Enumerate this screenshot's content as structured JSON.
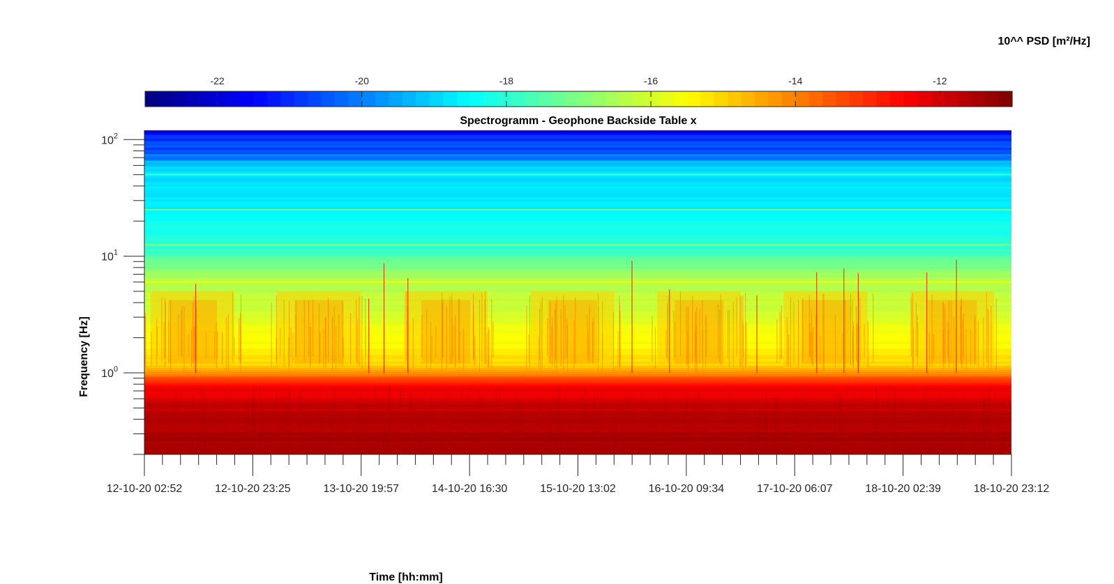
{
  "chart_data": {
    "type": "heatmap",
    "title": "Spectrogramm - Geophone Backside Table x",
    "xlabel": "Time [hh:mm]",
    "ylabel": "Frequency [Hz]",
    "colorbar_label": "10^^ PSD [m²/Hz]",
    "colormap": "jet",
    "color_range": [
      -23.0,
      -11.0
    ],
    "colorbar_ticks": [
      -22,
      -20,
      -18,
      -16,
      -14,
      -12
    ],
    "colorbar_tick_labels": [
      "-22",
      "-20",
      "-18",
      "-16",
      "-14",
      "-12"
    ],
    "y_scale": "log",
    "ylim": [
      0.2,
      120
    ],
    "y_major_ticks": [
      1,
      10,
      100
    ],
    "y_tick_labels": [
      {
        "base": "10",
        "exp": "0"
      },
      {
        "base": "10",
        "exp": "1"
      },
      {
        "base": "10",
        "exp": "2"
      }
    ],
    "x_tick_labels": [
      "12-10-20 02:52",
      "12-10-20 23:25",
      "13-10-20 19:57",
      "14-10-20 16:30",
      "15-10-20 13:02",
      "16-10-20 09:34",
      "17-10-20 06:07",
      "18-10-20 02:39",
      "18-10-20 23:12"
    ],
    "x_minor_ticks_per_major": 6,
    "frequency_bands_hz": [
      0.2,
      0.3,
      0.5,
      0.8,
      1.0,
      1.2,
      2,
      4,
      6,
      8,
      12,
      25,
      50,
      120
    ],
    "psd_log10_by_band": [
      -11.4,
      -11.5,
      -11.8,
      -12.6,
      -14.3,
      -15.1,
      -15.6,
      -16.2,
      -16.4,
      -17.0,
      -18.0,
      -18.6,
      -18.9,
      -21.5
    ],
    "daily_activity_centers": [
      "12-10-20 12:00",
      "13-10-20 12:00",
      "14-10-20 12:00",
      "15-10-20 12:00",
      "16-10-20 12:00",
      "17-10-20 12:00",
      "18-10-20 12:00"
    ],
    "grid": false
  }
}
